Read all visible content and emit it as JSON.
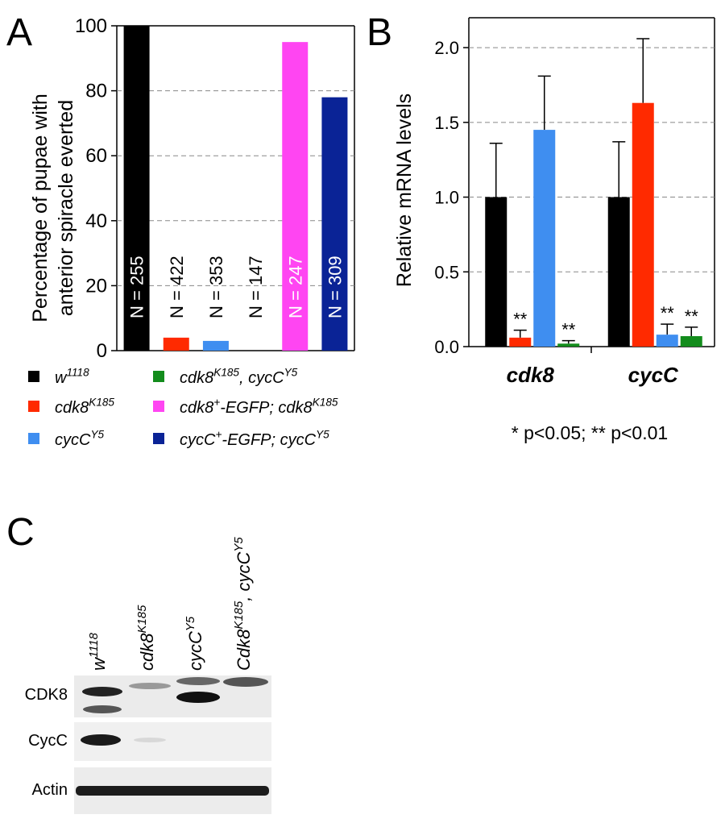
{
  "panels": {
    "a": "A",
    "b": "B",
    "c": "C"
  },
  "chart_data": [
    {
      "panel": "A",
      "type": "bar",
      "ylabel_line1": "Percentage of pupae with",
      "ylabel_line2": "anterior spiracle everted",
      "ylim": [
        0,
        100
      ],
      "yticks": [
        0,
        20,
        40,
        60,
        80,
        100
      ],
      "grid": true,
      "categories": [
        "w1118",
        "cdk8 K185",
        "cycC Y5",
        "cdk8 K185, cycC Y5",
        "cdk8+-EGFP; cdk8 K185",
        "cycC+-EGFP; cycC Y5"
      ],
      "values": [
        100,
        4,
        3,
        0,
        95,
        78
      ],
      "n_labels": [
        "N = 255",
        "N = 422",
        "N = 353",
        "N = 147",
        "N = 247",
        "N = 309"
      ],
      "colors": [
        "#000000",
        "#ff2a00",
        "#3f8ef0",
        "#138c1c",
        "#ff45f2",
        "#0a2396"
      ]
    },
    {
      "panel": "B",
      "type": "bar",
      "ylabel": "Relative mRNA levels",
      "ylim": [
        0,
        2.2
      ],
      "yticks": [
        "0.0",
        "0.5",
        "1.0",
        "1.5",
        "2.0"
      ],
      "grid": true,
      "groups": [
        "cdk8",
        "cycC"
      ],
      "series": [
        {
          "values": [
            1.0,
            1.0
          ],
          "errors": [
            0.36,
            0.37
          ],
          "color": "#000000"
        },
        {
          "values": [
            0.06,
            1.63
          ],
          "errors": [
            0.05,
            0.43
          ],
          "color": "#ff2a00"
        },
        {
          "values": [
            1.45,
            0.08
          ],
          "errors": [
            0.36,
            0.07
          ],
          "color": "#3f8ef0"
        },
        {
          "values": [
            0.02,
            0.07
          ],
          "errors": [
            0.02,
            0.06
          ],
          "color": "#138c1c"
        }
      ],
      "significance": [
        [
          "",
          "**",
          "",
          "**"
        ],
        [
          "",
          "",
          "**",
          "**"
        ]
      ],
      "footnote": "* p<0.05; ** p<0.01"
    }
  ],
  "legend": [
    {
      "base": "w",
      "sup": "1118",
      "rest": "",
      "color": "#000000"
    },
    {
      "base": "cdk8",
      "sup": "K185",
      "rest": "",
      "color": "#ff2a00"
    },
    {
      "base": "cycC",
      "sup": "Y5",
      "rest": "",
      "color": "#3f8ef0"
    },
    {
      "base": "cdk8",
      "sup": "K185",
      "rest": ", cycC",
      "sup2": "Y5",
      "color": "#138c1c"
    },
    {
      "base": "cdk8",
      "sup": "+",
      "rest": "-EGFP; cdk8",
      "sup2": "K185",
      "color": "#ff45f2"
    },
    {
      "base": "cycC",
      "sup": "+",
      "rest": "-EGFP; cycC",
      "sup2": "Y5",
      "color": "#0a2396"
    }
  ],
  "blot": {
    "lanes": [
      {
        "base": "w",
        "sup": "1118",
        "rest": ""
      },
      {
        "base": "cdk8",
        "sup": "K185",
        "rest": ""
      },
      {
        "base": "cycC",
        "sup": "Y5",
        "rest": ""
      },
      {
        "base": "Cdk8",
        "sup": "K185",
        "rest": ", cycC",
        "sup2": "Y5"
      }
    ],
    "rows": [
      "CDK8",
      "CycC",
      "Actin"
    ]
  }
}
